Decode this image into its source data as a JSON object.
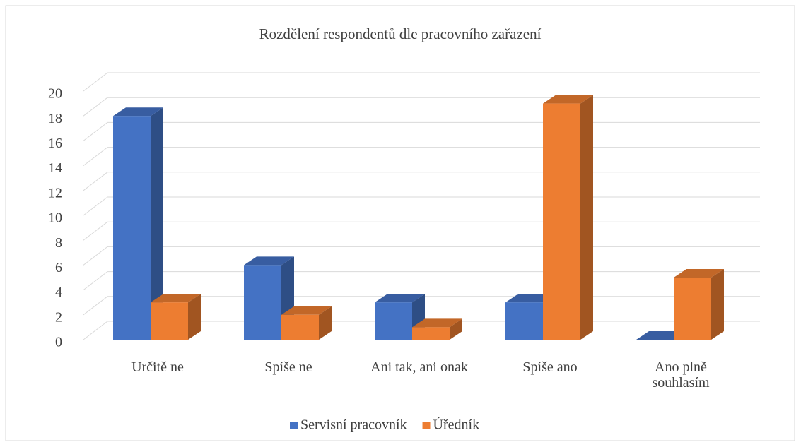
{
  "chart_data": {
    "type": "bar3d",
    "title": "Rozdělení respondentů dle pracovního zařazení",
    "categories": [
      "Určitě ne",
      "Spíše ne",
      "Ani tak, ani onak",
      "Spíše ano",
      "Ano plně souhlasím"
    ],
    "series": [
      {
        "name": "Servisní pracovník",
        "color": "#4472c4",
        "values": [
          18,
          6,
          3,
          3,
          0
        ]
      },
      {
        "name": "Úředník",
        "color": "#ed7d31",
        "values": [
          3,
          2,
          1,
          19,
          5
        ]
      }
    ],
    "ylim": [
      0,
      20
    ],
    "yticks": [
      0,
      2,
      4,
      6,
      8,
      10,
      12,
      14,
      16,
      18,
      20
    ],
    "grid": true,
    "legend": "bottom"
  }
}
